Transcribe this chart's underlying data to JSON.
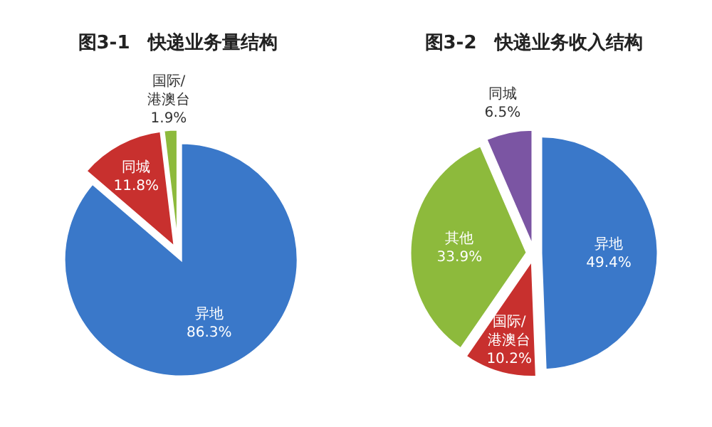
{
  "chart_data": [
    {
      "type": "pie",
      "title": "图3-1　快递业务量结构",
      "categories": [
        "异地",
        "同城",
        "国际/港澳台"
      ],
      "values": [
        86.3,
        11.8,
        1.9
      ],
      "colors": [
        "#3a78c9",
        "#c8302e",
        "#8dba3c"
      ],
      "value_labels": [
        "86.3%",
        "11.8%",
        "1.9%"
      ]
    },
    {
      "type": "pie",
      "title": "图3-2　快递业务收入结构",
      "categories": [
        "异地",
        "国际/港澳台",
        "其他",
        "同城"
      ],
      "values": [
        49.4,
        10.2,
        33.9,
        6.5
      ],
      "colors": [
        "#3a78c9",
        "#c8302e",
        "#8dba3c",
        "#7b55a3"
      ],
      "value_labels": [
        "49.4%",
        "10.2%",
        "33.9%",
        "6.5%"
      ]
    }
  ]
}
